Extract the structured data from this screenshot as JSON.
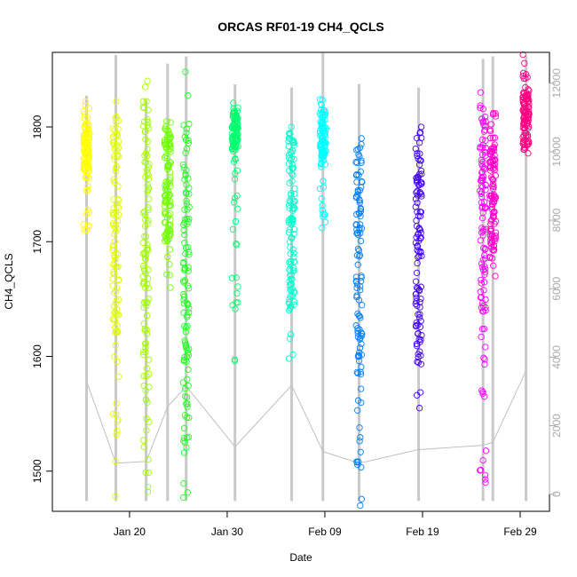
{
  "chart_data": {
    "type": "scatter",
    "title": "ORCAS RF01-19 CH4_QCLS",
    "xlabel": "Date",
    "ylabel": "CH4_QCLS",
    "x_ticks": [
      "Jan 20",
      "Jan 30",
      "Feb 09",
      "Feb 19",
      "Feb 29"
    ],
    "x_tick_days": [
      20,
      30,
      40,
      50,
      60
    ],
    "xlim_days": [
      12.1,
      63.0
    ],
    "ylim": [
      1465,
      1865
    ],
    "y_ticks": [
      1500,
      1600,
      1700,
      1800
    ],
    "y2_ticks": [
      0,
      2000,
      4000,
      6000,
      8000,
      10000,
      12000
    ],
    "y2lim": [
      -500,
      12900
    ],
    "grid": false,
    "legend": "none",
    "altitude_color": "#c0c0c0",
    "flights": [
      {
        "day": 15.6,
        "min": 1710,
        "max": 1822,
        "dense": [
          1760,
          1805
        ],
        "color": "#ffff00"
      },
      {
        "day": 18.6,
        "min": 1478,
        "max": 1822,
        "dense": [
          1620,
          1800
        ],
        "color": "#e0ff00"
      },
      {
        "day": 21.7,
        "min": 1482,
        "max": 1840,
        "dense": [
          1560,
          1830
        ],
        "color": "#a0ff00"
      },
      {
        "day": 23.9,
        "min": 1660,
        "max": 1805,
        "dense": [
          1700,
          1800
        ],
        "color": "#70ff00"
      },
      {
        "day": 25.8,
        "min": 1477,
        "max": 1848,
        "dense": [
          1520,
          1800
        ],
        "color": "#20ff20"
      },
      {
        "day": 30.8,
        "min": 1596,
        "max": 1821,
        "dense": [
          1780,
          1815
        ],
        "color": "#00ff70"
      },
      {
        "day": 36.6,
        "min": 1598,
        "max": 1800,
        "dense": [
          1640,
          1795
        ],
        "color": "#00ffcc"
      },
      {
        "day": 39.8,
        "min": 1712,
        "max": 1824,
        "dense": [
          1765,
          1815
        ],
        "color": "#00ffff"
      },
      {
        "day": 43.5,
        "min": 1470,
        "max": 1790,
        "dense": [
          1580,
          1785
        ],
        "color": "#0080ff"
      },
      {
        "day": 49.6,
        "min": 1555,
        "max": 1800,
        "dense": [
          1590,
          1795
        ],
        "color": "#4000ff"
      },
      {
        "day": 56.2,
        "min": 1490,
        "max": 1830,
        "dense": [
          1610,
          1820
        ],
        "color": "#ff00ff"
      },
      {
        "day": 57.2,
        "min": 1670,
        "max": 1812,
        "dense": [
          1690,
          1805
        ],
        "color": "#ff00cc"
      },
      {
        "day": 60.6,
        "min": 1777,
        "max": 1863,
        "dense": [
          1780,
          1830
        ],
        "color": "#ff0080"
      }
    ]
  }
}
